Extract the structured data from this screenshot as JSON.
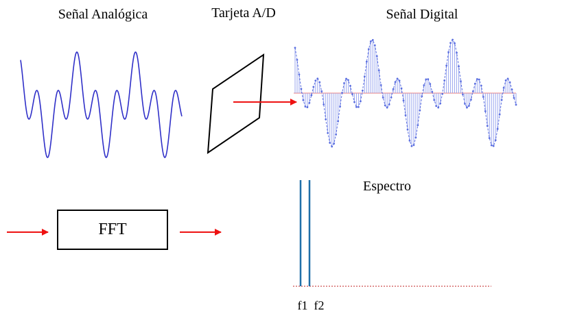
{
  "labels": {
    "analog_title": "Señal Analógica",
    "adc_title": "Tarjeta  A/D",
    "digital_title": "Señal Digital",
    "spectrum_title": "Espectro",
    "fft_label": "FFT",
    "f1_label": "f1",
    "f2_label": "f2"
  },
  "signal": {
    "components": [
      {
        "name": "f1",
        "relative_frequency": 1,
        "amplitude": 0.5
      },
      {
        "name": "f2",
        "relative_frequency": 3,
        "amplitude": 0.5
      }
    ],
    "cycles_shown": 2.75
  },
  "colors": {
    "analog_wave": "#2f2fc8",
    "digital_wave": "#5a6ee0",
    "stems": "#9aa6ee",
    "digital_baseline": "#f2a6a6",
    "arrows": "#ee1111",
    "spectrum_lines": "#1f6fa8",
    "spectrum_baseline": "#c02020",
    "outline": "#000000"
  }
}
